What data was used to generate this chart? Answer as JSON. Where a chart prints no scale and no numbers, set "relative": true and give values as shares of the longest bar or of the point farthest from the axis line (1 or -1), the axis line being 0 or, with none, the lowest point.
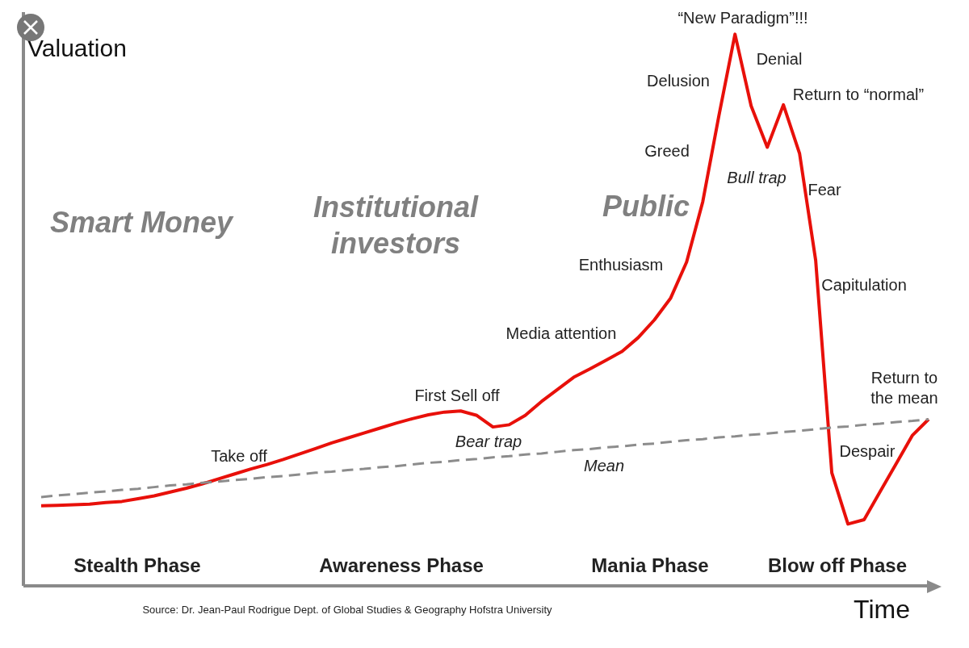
{
  "chart_data": {
    "type": "line",
    "relative": true,
    "xlabel": "Time",
    "ylabel": "Valuation",
    "categories": [
      null,
      null,
      null,
      null,
      null,
      null,
      null,
      null,
      null,
      null,
      null,
      null,
      null,
      null,
      null,
      null,
      null,
      null,
      null,
      null,
      null,
      null,
      null,
      null,
      null,
      null,
      null,
      null,
      null,
      null,
      null,
      null,
      null,
      null,
      null,
      null,
      null,
      null,
      null,
      null,
      null,
      null,
      null,
      null,
      null,
      null,
      null,
      null,
      null,
      null,
      null,
      null,
      null,
      null,
      null,
      null
    ],
    "series": [
      {
        "color": "#e8100a",
        "line_style": "solid",
        "values": [
          0.145,
          0.146,
          0.147,
          0.148,
          0.151,
          0.153,
          0.158,
          0.163,
          0.17,
          0.177,
          0.185,
          0.194,
          0.203,
          0.212,
          0.22,
          0.229,
          0.239,
          0.249,
          0.259,
          0.268,
          0.277,
          0.286,
          0.295,
          0.303,
          0.31,
          0.315,
          0.317,
          0.309,
          0.288,
          0.292,
          0.309,
          0.334,
          0.356,
          0.378,
          0.393,
          0.409,
          0.425,
          0.45,
          0.482,
          0.521,
          0.587,
          0.696,
          0.852,
          1,
          0.87,
          0.795,
          0.872,
          0.784,
          0.59,
          0.205,
          0.112,
          0.12,
          0.171,
          0.222,
          0.273,
          0.302
        ]
      },
      {
        "color": "#8c8c8c",
        "line_style": "dashed",
        "values": [
          0.161,
          0.164,
          0.166,
          0.169,
          0.171,
          0.174,
          0.176,
          0.179,
          0.182,
          0.184,
          0.187,
          0.189,
          0.192,
          0.194,
          0.197,
          0.199,
          0.202,
          0.205,
          0.207,
          0.21,
          0.212,
          0.215,
          0.217,
          0.22,
          0.223,
          0.225,
          0.228,
          0.23,
          0.233,
          0.235,
          0.238,
          0.24,
          0.243,
          0.246,
          0.248,
          0.251,
          0.253,
          0.256,
          0.258,
          0.261,
          0.264,
          0.266,
          0.269,
          0.271,
          0.274,
          0.276,
          0.279,
          0.281,
          0.284,
          0.287,
          0.289,
          0.292,
          0.294,
          0.297,
          0.299,
          0.302
        ]
      }
    ],
    "annotations": [
      "Smart Money",
      "Institutional\ninvestors",
      "Public",
      "Stealth Phase",
      "Awareness Phase",
      "Mania Phase",
      "Blow off Phase",
      "Source: Dr. Jean-Paul Rodrigue Dept. of Global Studies & Geography Hofstra University",
      "“New Paradigm”!!!",
      "Denial",
      "Delusion",
      "Return to “normal”",
      "Greed",
      "Bull trap",
      "Fear",
      "Enthusiasm",
      "Capitulation",
      "Media attention",
      "Return to\nthe mean",
      "First Sell off",
      "Bear trap",
      "Take off",
      "Despair",
      "Mean"
    ]
  }
}
